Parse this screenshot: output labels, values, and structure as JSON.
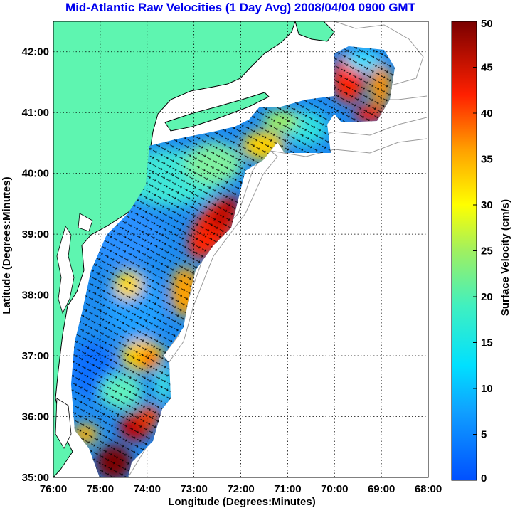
{
  "title": "Mid-Atlantic Raw Velocities (1 Day Avg) 2008/04/04 0900 GMT",
  "x_axis": {
    "label": "Longitude (Degrees:Minutes)",
    "ticks": [
      "76:00",
      "75:00",
      "74:00",
      "73:00",
      "72:00",
      "71:00",
      "70:00",
      "69:00",
      "68:00"
    ]
  },
  "y_axis": {
    "label": "Latitude (Degrees:Minutes)",
    "ticks": [
      "42:00",
      "41:00",
      "40:00",
      "39:00",
      "38:00",
      "37:00",
      "36:00",
      "35:00"
    ]
  },
  "colorbar": {
    "label": "Surface Velocity (cm/s)",
    "ticks": [
      "50",
      "45",
      "40",
      "35",
      "30",
      "25",
      "20",
      "15",
      "10",
      "5",
      "0"
    ],
    "min": 0,
    "max": 50
  },
  "colors": {
    "land": "#5ef5b0",
    "title": "#0000ee",
    "grid": "#000000",
    "bathymetry": "#9a9a9a"
  },
  "map_extent": {
    "lon_min": -76,
    "lon_max": -68,
    "lat_min": 35,
    "lat_max": 42.5
  }
}
